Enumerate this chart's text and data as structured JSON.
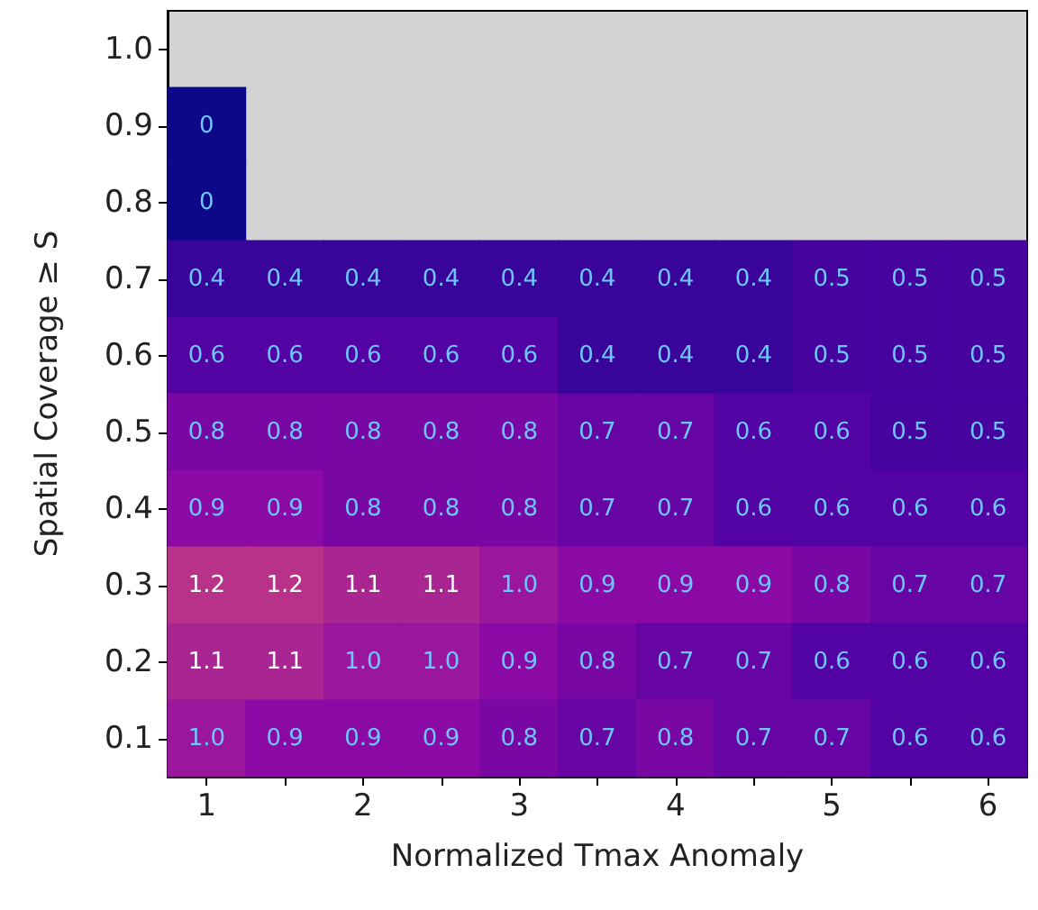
{
  "chart_data": {
    "type": "heatmap",
    "xlabel": "Normalized Tmax Anomaly",
    "ylabel": "Spatial Coverage ≥ S",
    "categories": [
      "1",
      null,
      "2",
      null,
      "3",
      null,
      "4",
      null,
      "5",
      null,
      "6"
    ],
    "y_categories": [
      "1.0",
      "0.9",
      "0.8",
      "0.7",
      "0.6",
      "0.5",
      "0.4",
      "0.3",
      "0.2",
      "0.1"
    ],
    "cells": [
      [
        null,
        null,
        null,
        null,
        null,
        null,
        null,
        null,
        null,
        null,
        null
      ],
      [
        0,
        null,
        null,
        null,
        null,
        null,
        null,
        null,
        null,
        null,
        null
      ],
      [
        0,
        null,
        null,
        null,
        null,
        null,
        null,
        null,
        null,
        null,
        null
      ],
      [
        0.4,
        0.4,
        0.4,
        0.4,
        0.4,
        0.4,
        0.4,
        0.4,
        0.5,
        0.5,
        0.5
      ],
      [
        0.6,
        0.6,
        0.6,
        0.6,
        0.6,
        0.4,
        0.4,
        0.4,
        0.5,
        0.5,
        0.5
      ],
      [
        0.8,
        0.8,
        0.8,
        0.8,
        0.8,
        0.7,
        0.7,
        0.6,
        0.6,
        0.5,
        0.5
      ],
      [
        0.9,
        0.9,
        0.8,
        0.8,
        0.8,
        0.7,
        0.7,
        0.6,
        0.6,
        0.6,
        0.6
      ],
      [
        1.2,
        1.2,
        1.1,
        1.1,
        1.0,
        0.9,
        0.9,
        0.9,
        0.8,
        0.7,
        0.7
      ],
      [
        1.1,
        1.1,
        1.0,
        1.0,
        0.9,
        0.8,
        0.7,
        0.7,
        0.6,
        0.6,
        0.6
      ],
      [
        1.0,
        0.9,
        0.9,
        0.9,
        0.8,
        0.7,
        0.8,
        0.7,
        0.7,
        0.6,
        0.6
      ]
    ],
    "cell_labels": [
      [
        null,
        null,
        null,
        null,
        null,
        null,
        null,
        null,
        null,
        null,
        null
      ],
      [
        "0",
        null,
        null,
        null,
        null,
        null,
        null,
        null,
        null,
        null,
        null
      ],
      [
        "0",
        null,
        null,
        null,
        null,
        null,
        null,
        null,
        null,
        null,
        null
      ],
      [
        "0.4",
        "0.4",
        "0.4",
        "0.4",
        "0.4",
        "0.4",
        "0.4",
        "0.4",
        "0.5",
        "0.5",
        "0.5"
      ],
      [
        "0.6",
        "0.6",
        "0.6",
        "0.6",
        "0.6",
        "0.4",
        "0.4",
        "0.4",
        "0.5",
        "0.5",
        "0.5"
      ],
      [
        "0.8",
        "0.8",
        "0.8",
        "0.8",
        "0.8",
        "0.7",
        "0.7",
        "0.6",
        "0.6",
        "0.5",
        "0.5"
      ],
      [
        "0.9",
        "0.9",
        "0.8",
        "0.8",
        "0.8",
        "0.7",
        "0.7",
        "0.6",
        "0.6",
        "0.6",
        "0.6"
      ],
      [
        "1.2",
        "1.2",
        "1.1",
        "1.1",
        "1.0",
        "0.9",
        "0.9",
        "0.9",
        "0.8",
        "0.7",
        "0.7"
      ],
      [
        "1.1",
        "1.1",
        "1.0",
        "1.0",
        "0.9",
        "0.8",
        "0.7",
        "0.7",
        "0.6",
        "0.6",
        "0.6"
      ],
      [
        "1.0",
        "0.9",
        "0.9",
        "0.9",
        "0.8",
        "0.7",
        "0.8",
        "0.7",
        "0.7",
        "0.6",
        "0.6"
      ]
    ]
  }
}
